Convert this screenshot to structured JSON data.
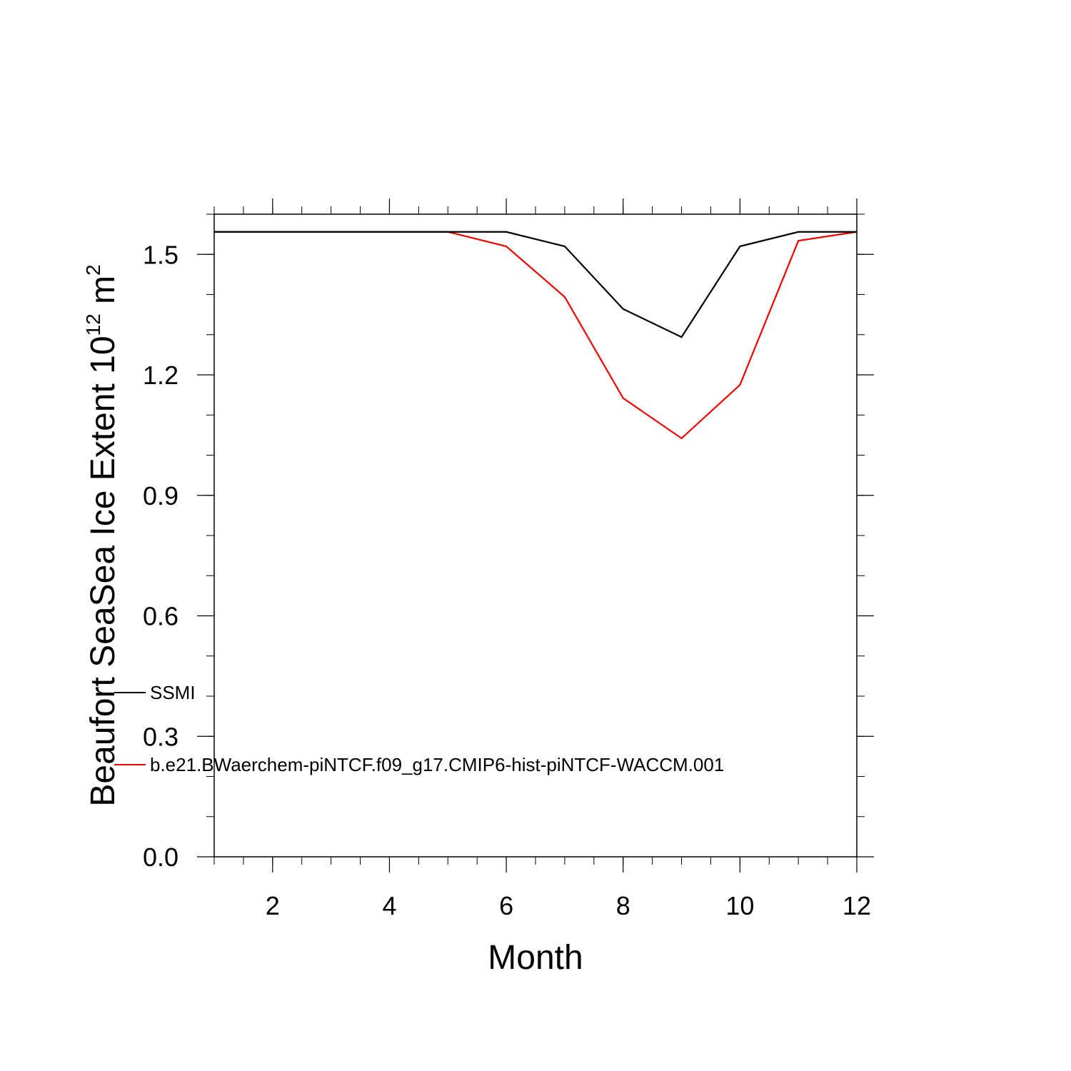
{
  "chart_data": {
    "type": "line",
    "xlabel": "Month",
    "ylabel_main": "Beaufort SeaSea Ice Extent 10",
    "ylabel_exp": "12",
    "ylabel_unit": " m",
    "ylabel_unit_exp": "2",
    "xlim": [
      1,
      12
    ],
    "ylim": [
      0,
      1.6
    ],
    "x_ticks": [
      2,
      4,
      6,
      8,
      10,
      12
    ],
    "x_tick_labels": [
      "2",
      "4",
      "6",
      "8",
      "10",
      "12"
    ],
    "y_ticks": [
      0,
      0.3,
      0.6,
      0.9,
      1.2,
      1.5
    ],
    "y_tick_labels": [
      "0.0",
      "0.3",
      "0.6",
      "0.9",
      "1.2",
      "1.5"
    ],
    "x": [
      1,
      2,
      3,
      4,
      5,
      6,
      7,
      8,
      9,
      10,
      11,
      12
    ],
    "series": [
      {
        "name": "SSMI",
        "color": "#000000",
        "values": [
          1.556,
          1.556,
          1.556,
          1.556,
          1.556,
          1.556,
          1.52,
          1.364,
          1.294,
          1.52,
          1.556,
          1.556
        ]
      },
      {
        "name": "b.e21.BWaerchem-piNTCF.f09_g17.CMIP6-hist-piNTCF-WACCM.001",
        "color": "#ee0000",
        "values": [
          1.556,
          1.556,
          1.556,
          1.556,
          1.556,
          1.52,
          1.394,
          1.142,
          1.042,
          1.175,
          1.534,
          1.556
        ]
      }
    ],
    "legend_position": "lower-left"
  }
}
